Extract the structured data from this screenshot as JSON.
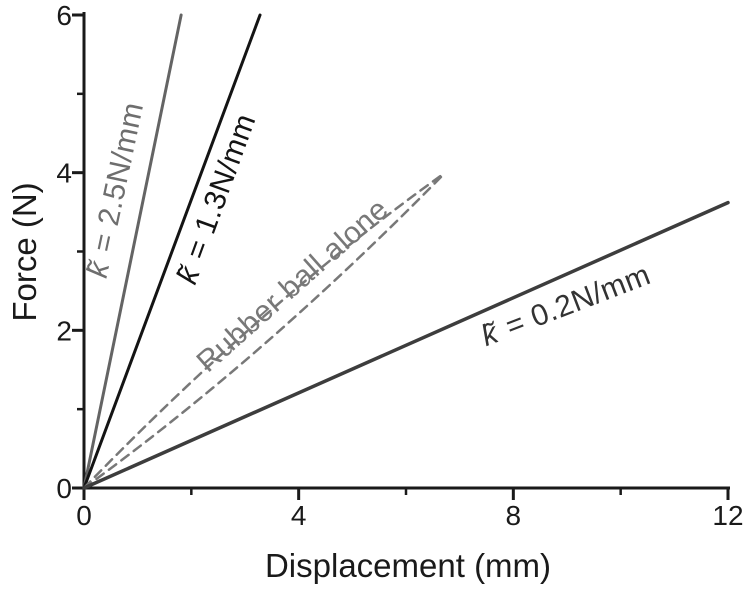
{
  "figure": {
    "background": "#ffffff"
  },
  "axes": {
    "xlabel": "Displacement (mm)",
    "ylabel": "Force (N)",
    "xlim": [
      0,
      12
    ],
    "ylim": [
      0,
      6
    ],
    "x_major_ticks": [
      0,
      4,
      8,
      12
    ],
    "x_minor_ticks": [
      2,
      6,
      10
    ],
    "y_major_ticks": [
      0,
      2,
      4,
      6
    ],
    "y_minor_ticks": [
      1,
      3,
      5
    ],
    "axis_color": "#1a1a1a"
  },
  "chart_data": {
    "type": "line",
    "title": "",
    "xlabel": "Displacement (mm)",
    "ylabel": "Force (N)",
    "xlim": [
      0,
      12
    ],
    "ylim": [
      0,
      6
    ],
    "grid": false,
    "legend": "inline-rotated-labels",
    "series": [
      {
        "id": "k25",
        "name": "k̃ = 2.5N/mm",
        "symbol": "k̃",
        "label_rest": " = 2.5N/mm",
        "stiffness_label": "2.5 N/mm",
        "style": "solid",
        "color": "#646464",
        "width": 3,
        "points": [
          [
            0,
            0
          ],
          [
            1.81,
            6
          ]
        ]
      },
      {
        "id": "k13",
        "name": "k̃ = 1.3N/mm",
        "symbol": "k̃",
        "label_rest": " = 1.3N/mm",
        "stiffness_label": "1.3 N/mm",
        "style": "solid",
        "color": "#141414",
        "width": 3,
        "points": [
          [
            0,
            0
          ],
          [
            3.28,
            6
          ]
        ]
      },
      {
        "id": "ball_loading",
        "name": "Rubber ball alone",
        "label_text": "Rubber ball alone",
        "style": "dashed",
        "color": "#787878",
        "width": 2.5,
        "points": [
          [
            0,
            0
          ],
          [
            6.73,
            4.0
          ]
        ],
        "ctrl": [
          3.35,
          2.36
        ]
      },
      {
        "id": "ball_unloading",
        "name": "Rubber ball alone (return)",
        "style": "dashed",
        "color": "#787878",
        "width": 2.5,
        "points": [
          [
            0,
            0
          ],
          [
            6.73,
            4.0
          ]
        ],
        "ctrl": [
          3.35,
          1.65
        ]
      },
      {
        "id": "k02",
        "name": "k̃ = 0.2N/mm",
        "symbol": "k̃",
        "label_rest": " = 0.2N/mm",
        "stiffness_label": "0.2 N/mm",
        "style": "solid",
        "color": "#3d3d3d",
        "width": 3.5,
        "points": [
          [
            0,
            0
          ],
          [
            12,
            3.62
          ]
        ]
      }
    ]
  }
}
